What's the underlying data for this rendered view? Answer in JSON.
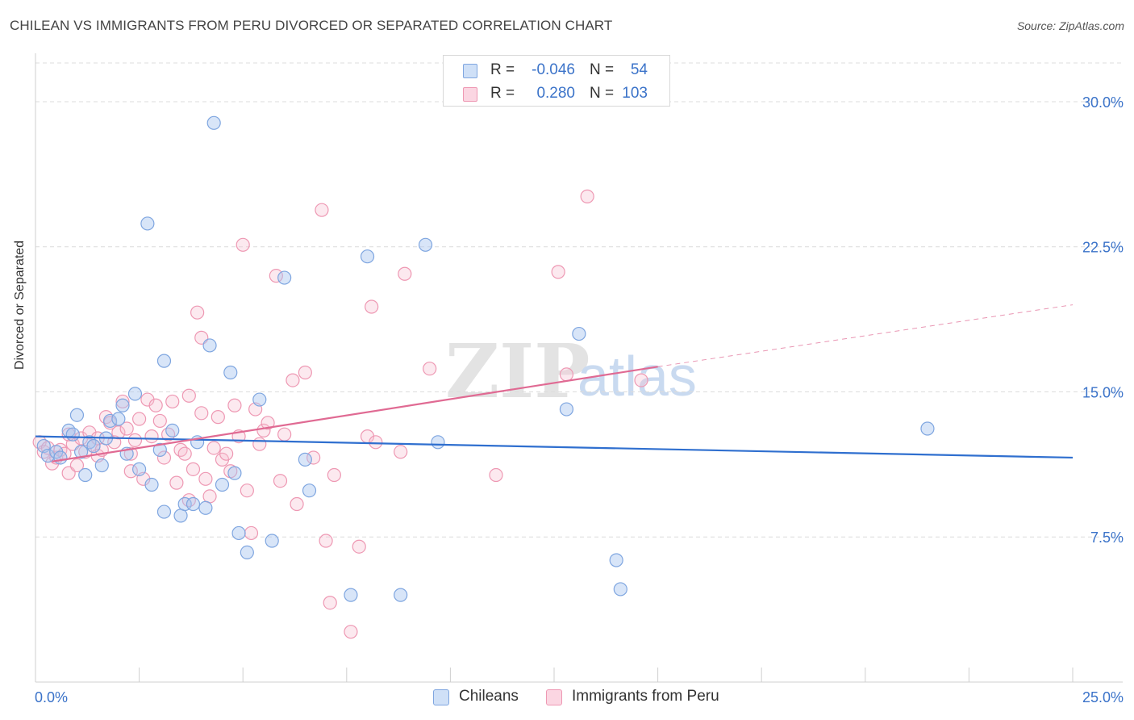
{
  "title": "CHILEAN VS IMMIGRANTS FROM PERU DIVORCED OR SEPARATED CORRELATION CHART",
  "source": "Source: ZipAtlas.com",
  "watermark": {
    "zip": "ZIP",
    "atlas": "atlas"
  },
  "legend": {
    "rows": [
      {
        "r_label": "R =",
        "r_value": "-0.046",
        "n_label": "N =",
        "n_value": "54",
        "color": "#a9c6ef",
        "stroke": "#7fa6e0"
      },
      {
        "r_label": "R =",
        "r_value": "0.280",
        "n_label": "N =",
        "n_value": "103",
        "color": "#f7bfd0",
        "stroke": "#ee98b3"
      }
    ]
  },
  "bottom_legend": [
    {
      "label": "Chileans",
      "color": "#a9c6ef",
      "stroke": "#7fa6e0"
    },
    {
      "label": "Immigrants from Peru",
      "color": "#f7bfd0",
      "stroke": "#ee98b3"
    }
  ],
  "chart_data": {
    "type": "scatter",
    "ylabel": "Divorced or Separated",
    "xlabel": "",
    "xlim": [
      0,
      25
    ],
    "ylim": [
      0,
      32
    ],
    "x_tick_labels": [
      {
        "value": 0,
        "label": "0.0%"
      },
      {
        "value": 25,
        "label": "25.0%"
      }
    ],
    "y_tick_labels": [
      {
        "value": 7.5,
        "label": "7.5%"
      },
      {
        "value": 15,
        "label": "15.0%"
      },
      {
        "value": 22.5,
        "label": "22.5%"
      },
      {
        "value": 30,
        "label": "30.0%"
      }
    ],
    "grid": true,
    "series": [
      {
        "name": "Chileans",
        "color": "#7fa6e0",
        "fill": "#a9c6ef",
        "line_color": "#2f6fcf",
        "trend": {
          "x0": 0,
          "y0": 12.7,
          "x1": 25,
          "y1": 11.6
        },
        "points": [
          [
            0.2,
            12.2
          ],
          [
            0.3,
            11.7
          ],
          [
            0.5,
            11.9
          ],
          [
            0.6,
            11.6
          ],
          [
            0.8,
            13.0
          ],
          [
            0.9,
            12.8
          ],
          [
            1.0,
            13.8
          ],
          [
            1.1,
            11.9
          ],
          [
            1.2,
            10.7
          ],
          [
            1.3,
            12.4
          ],
          [
            1.4,
            12.2
          ],
          [
            1.6,
            11.2
          ],
          [
            1.7,
            12.6
          ],
          [
            1.8,
            13.5
          ],
          [
            2.0,
            13.6
          ],
          [
            2.1,
            14.3
          ],
          [
            2.2,
            11.8
          ],
          [
            2.4,
            14.9
          ],
          [
            2.5,
            11.0
          ],
          [
            2.7,
            23.7
          ],
          [
            2.8,
            10.2
          ],
          [
            3.0,
            12.0
          ],
          [
            3.1,
            16.6
          ],
          [
            3.1,
            8.8
          ],
          [
            3.3,
            13.0
          ],
          [
            3.5,
            8.6
          ],
          [
            3.6,
            9.2
          ],
          [
            3.8,
            9.2
          ],
          [
            3.9,
            12.4
          ],
          [
            4.1,
            9.0
          ],
          [
            4.2,
            17.4
          ],
          [
            4.3,
            28.9
          ],
          [
            4.5,
            10.2
          ],
          [
            4.7,
            16.0
          ],
          [
            4.8,
            10.8
          ],
          [
            4.9,
            7.7
          ],
          [
            5.1,
            6.7
          ],
          [
            5.4,
            14.6
          ],
          [
            5.7,
            7.3
          ],
          [
            6.0,
            20.9
          ],
          [
            6.5,
            11.5
          ],
          [
            6.6,
            9.9
          ],
          [
            7.6,
            4.5
          ],
          [
            8.0,
            22.0
          ],
          [
            8.8,
            4.5
          ],
          [
            9.4,
            22.6
          ],
          [
            9.7,
            12.4
          ],
          [
            12.8,
            14.1
          ],
          [
            13.1,
            18.0
          ],
          [
            14.0,
            6.3
          ],
          [
            14.1,
            4.8
          ],
          [
            21.5,
            13.1
          ]
        ]
      },
      {
        "name": "Immigrants from Peru",
        "color": "#ee98b3",
        "fill": "#f7bfd0",
        "line_color": "#e06a93",
        "trend_solid": {
          "x0": 0.4,
          "y0": 11.4,
          "x1": 15.0,
          "y1": 16.3
        },
        "trend_dashed": {
          "x0": 15.0,
          "y0": 16.3,
          "x1": 25.0,
          "y1": 19.5
        },
        "points": [
          [
            0.1,
            12.4
          ],
          [
            0.2,
            11.9
          ],
          [
            0.3,
            12.1
          ],
          [
            0.4,
            11.3
          ],
          [
            0.5,
            11.6
          ],
          [
            0.6,
            12.0
          ],
          [
            0.7,
            11.8
          ],
          [
            0.8,
            10.8
          ],
          [
            0.9,
            12.3
          ],
          [
            1.0,
            11.2
          ],
          [
            1.1,
            12.6
          ],
          [
            1.2,
            11.9
          ],
          [
            1.3,
            12.9
          ],
          [
            1.4,
            12.2
          ],
          [
            1.5,
            11.7
          ],
          [
            1.6,
            12.0
          ],
          [
            1.7,
            13.7
          ],
          [
            1.8,
            13.4
          ],
          [
            1.9,
            12.4
          ],
          [
            2.0,
            12.9
          ],
          [
            2.1,
            14.5
          ],
          [
            2.2,
            13.1
          ],
          [
            2.3,
            11.8
          ],
          [
            2.4,
            12.5
          ],
          [
            2.5,
            13.6
          ],
          [
            2.6,
            10.5
          ],
          [
            2.7,
            14.6
          ],
          [
            2.8,
            12.7
          ],
          [
            2.9,
            14.3
          ],
          [
            3.0,
            13.5
          ],
          [
            3.1,
            11.6
          ],
          [
            3.2,
            12.8
          ],
          [
            3.3,
            14.5
          ],
          [
            3.4,
            10.3
          ],
          [
            3.5,
            12.0
          ],
          [
            3.6,
            11.8
          ],
          [
            3.7,
            14.8
          ],
          [
            3.8,
            11.0
          ],
          [
            3.9,
            19.1
          ],
          [
            4.0,
            17.8
          ],
          [
            4.1,
            10.5
          ],
          [
            4.2,
            9.6
          ],
          [
            4.3,
            12.1
          ],
          [
            4.4,
            13.7
          ],
          [
            4.5,
            11.5
          ],
          [
            4.6,
            11.8
          ],
          [
            4.7,
            10.9
          ],
          [
            4.8,
            14.3
          ],
          [
            4.9,
            12.7
          ],
          [
            5.0,
            22.6
          ],
          [
            5.1,
            9.9
          ],
          [
            5.2,
            7.7
          ],
          [
            5.3,
            14.1
          ],
          [
            5.4,
            12.3
          ],
          [
            5.5,
            13.0
          ],
          [
            5.6,
            13.4
          ],
          [
            5.8,
            21.0
          ],
          [
            5.9,
            10.4
          ],
          [
            6.0,
            12.8
          ],
          [
            6.2,
            15.6
          ],
          [
            6.3,
            9.2
          ],
          [
            6.5,
            16.0
          ],
          [
            6.7,
            11.6
          ],
          [
            6.9,
            24.4
          ],
          [
            7.0,
            7.3
          ],
          [
            7.1,
            4.1
          ],
          [
            7.2,
            10.7
          ],
          [
            7.6,
            2.6
          ],
          [
            7.8,
            7.0
          ],
          [
            8.0,
            12.7
          ],
          [
            8.1,
            19.4
          ],
          [
            8.2,
            12.4
          ],
          [
            8.8,
            11.9
          ],
          [
            8.9,
            21.1
          ],
          [
            9.5,
            16.2
          ],
          [
            11.1,
            10.7
          ],
          [
            12.6,
            21.2
          ],
          [
            12.8,
            15.9
          ],
          [
            13.3,
            25.1
          ],
          [
            14.6,
            15.6
          ],
          [
            2.3,
            10.9
          ],
          [
            3.7,
            9.4
          ],
          [
            4.0,
            13.9
          ],
          [
            0.8,
            12.8
          ],
          [
            1.5,
            12.6
          ]
        ]
      }
    ]
  }
}
